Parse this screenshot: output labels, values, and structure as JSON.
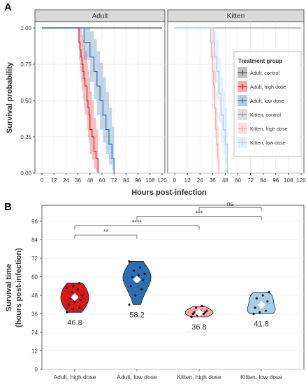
{
  "panel_a": {
    "letter": "A",
    "facet_titles": [
      "Adult",
      "Kitten"
    ],
    "ylabel": "Survival probability",
    "xlabel": "Hours post-infection",
    "y_ticks": [
      "0.00",
      "0.25",
      "0.50",
      "0.75",
      "1.00"
    ],
    "x_ticks": [
      "0",
      "12",
      "24",
      "36",
      "48",
      "60",
      "72",
      "84",
      "96",
      "108",
      "120"
    ],
    "legend": {
      "title": "Treatment group",
      "items": [
        {
          "label": "Adult, control",
          "color": "#4d4d4d"
        },
        {
          "label": "Adult, high dose",
          "color": "#d7191c"
        },
        {
          "label": "Adult, low dose",
          "color": "#2b6fb0"
        },
        {
          "label": "Kitten, control",
          "color": "#9a9a9a"
        },
        {
          "label": "Kitten, high dose",
          "color": "#f4a6a6"
        },
        {
          "label": "Kitten, low dose",
          "color": "#a6cde6"
        }
      ]
    }
  },
  "panel_b": {
    "letter": "B",
    "ylabel_line1": "Survival time",
    "ylabel_line2": "(hours post-infection)",
    "y_ticks": [
      "0",
      "12",
      "24",
      "36",
      "48",
      "60",
      "72",
      "84",
      "96"
    ],
    "groups": [
      "Adult, high dose",
      "Adult, low dose",
      "Kitten, high dose",
      "Kitten, low dose"
    ],
    "medians": [
      "46.8",
      "58.2",
      "36.8",
      "41.8"
    ],
    "significance": [
      "**",
      "****",
      "***",
      "ns"
    ]
  },
  "chart_data": [
    {
      "type": "line",
      "title": "",
      "xlabel": "Hours post-infection",
      "ylabel": "Survival probability",
      "xlim": [
        0,
        120
      ],
      "ylim": [
        0,
        1
      ],
      "facets": [
        "Adult",
        "Kitten"
      ],
      "grid": true,
      "legend_position": "right",
      "series": [
        {
          "name": "Adult, control",
          "facet": "Adult",
          "color": "#4d4d4d",
          "x": [
            0,
            120
          ],
          "y": [
            1.0,
            1.0
          ]
        },
        {
          "name": "Adult, high dose",
          "facet": "Adult",
          "color": "#d7191c",
          "x": [
            0,
            36,
            37,
            38,
            39,
            40,
            41,
            42,
            43,
            45,
            46,
            47,
            48,
            50,
            52,
            54,
            56
          ],
          "y": [
            1.0,
            1.0,
            0.9,
            0.85,
            0.8,
            0.75,
            0.7,
            0.65,
            0.6,
            0.5,
            0.45,
            0.4,
            0.3,
            0.25,
            0.15,
            0.1,
            0.0
          ],
          "ci_lower": [
            1.0,
            1.0,
            0.78,
            0.7,
            0.63,
            0.57,
            0.51,
            0.45,
            0.4,
            0.3,
            0.25,
            0.21,
            0.13,
            0.09,
            0.03,
            0.01,
            0.0
          ],
          "ci_upper": [
            1.0,
            1.0,
            1.0,
            1.0,
            1.0,
            0.95,
            0.92,
            0.88,
            0.84,
            0.76,
            0.71,
            0.66,
            0.56,
            0.5,
            0.38,
            0.3,
            0.0
          ]
        },
        {
          "name": "Adult, low dose",
          "facet": "Adult",
          "color": "#2b6fb0",
          "x": [
            0,
            36,
            42,
            48,
            52,
            55,
            58,
            61,
            64,
            67,
            70,
            72
          ],
          "y": [
            1.0,
            1.0,
            0.9,
            0.8,
            0.7,
            0.6,
            0.5,
            0.4,
            0.3,
            0.2,
            0.1,
            0.0
          ],
          "ci_lower": [
            1.0,
            1.0,
            0.78,
            0.63,
            0.51,
            0.4,
            0.3,
            0.21,
            0.13,
            0.06,
            0.02,
            0.0
          ],
          "ci_upper": [
            1.0,
            1.0,
            1.0,
            0.98,
            0.92,
            0.84,
            0.76,
            0.66,
            0.56,
            0.45,
            0.32,
            0.0
          ]
        },
        {
          "name": "Kitten, control",
          "facet": "Kitten",
          "color": "#9a9a9a",
          "x": [
            0,
            120
          ],
          "y": [
            1.0,
            1.0
          ]
        },
        {
          "name": "Kitten, high dose",
          "facet": "Kitten",
          "color": "#f4a6a6",
          "x": [
            0,
            33,
            34,
            35,
            36,
            37,
            38,
            39,
            40,
            41,
            42
          ],
          "y": [
            1.0,
            1.0,
            0.9,
            0.8,
            0.7,
            0.6,
            0.45,
            0.3,
            0.2,
            0.1,
            0.0
          ],
          "ci_lower": [
            1.0,
            1.0,
            0.78,
            0.63,
            0.51,
            0.4,
            0.25,
            0.13,
            0.06,
            0.02,
            0.0
          ],
          "ci_upper": [
            1.0,
            1.0,
            1.0,
            0.98,
            0.92,
            0.84,
            0.71,
            0.56,
            0.45,
            0.32,
            0.0
          ]
        },
        {
          "name": "Kitten, low dose",
          "facet": "Kitten",
          "color": "#a6cde6",
          "x": [
            0,
            36,
            37,
            38,
            40,
            42,
            44,
            46,
            48,
            50
          ],
          "y": [
            1.0,
            1.0,
            0.9,
            0.8,
            0.7,
            0.55,
            0.4,
            0.3,
            0.2,
            0.0
          ],
          "ci_lower": [
            1.0,
            1.0,
            0.78,
            0.63,
            0.51,
            0.35,
            0.21,
            0.13,
            0.06,
            0.0
          ],
          "ci_upper": [
            1.0,
            1.0,
            1.0,
            0.98,
            0.92,
            0.8,
            0.66,
            0.56,
            0.45,
            0.0
          ]
        }
      ]
    },
    {
      "type": "violin",
      "title": "",
      "xlabel": "",
      "ylabel": "Survival time (hours post-infection)",
      "ylim": [
        0,
        104
      ],
      "categories": [
        "Adult, high dose",
        "Adult, low dose",
        "Kitten, high dose",
        "Kitten, low dose"
      ],
      "colors": [
        "#d7191c",
        "#2b6fb0",
        "#f4a6a6",
        "#a6cde6"
      ],
      "medians": [
        46.8,
        58.2,
        36.8,
        41.8
      ],
      "points": [
        [
          37,
          39,
          40,
          42,
          44,
          45,
          46,
          47,
          48,
          50,
          52,
          53,
          54,
          56
        ],
        [
          42,
          48,
          52,
          54,
          56,
          58,
          60,
          61,
          62,
          64,
          66,
          70
        ],
        [
          34,
          35,
          36,
          36,
          37,
          37,
          37,
          38,
          38,
          40,
          41
        ],
        [
          36,
          37,
          38,
          40,
          42,
          44,
          46,
          48,
          50
        ]
      ],
      "comparisons": [
        {
          "from": "Adult, high dose",
          "to": "Adult, low dose",
          "label": "**",
          "y": 87
        },
        {
          "from": "Adult, high dose",
          "to": "Kitten, high dose",
          "label": "****",
          "y": 93
        },
        {
          "from": "Adult, low dose",
          "to": "Kitten, low dose",
          "label": "***",
          "y": 99
        },
        {
          "from": "Kitten, high dose",
          "to": "Kitten, low dose",
          "label": "ns",
          "y": 105
        }
      ],
      "grid": true
    }
  ]
}
